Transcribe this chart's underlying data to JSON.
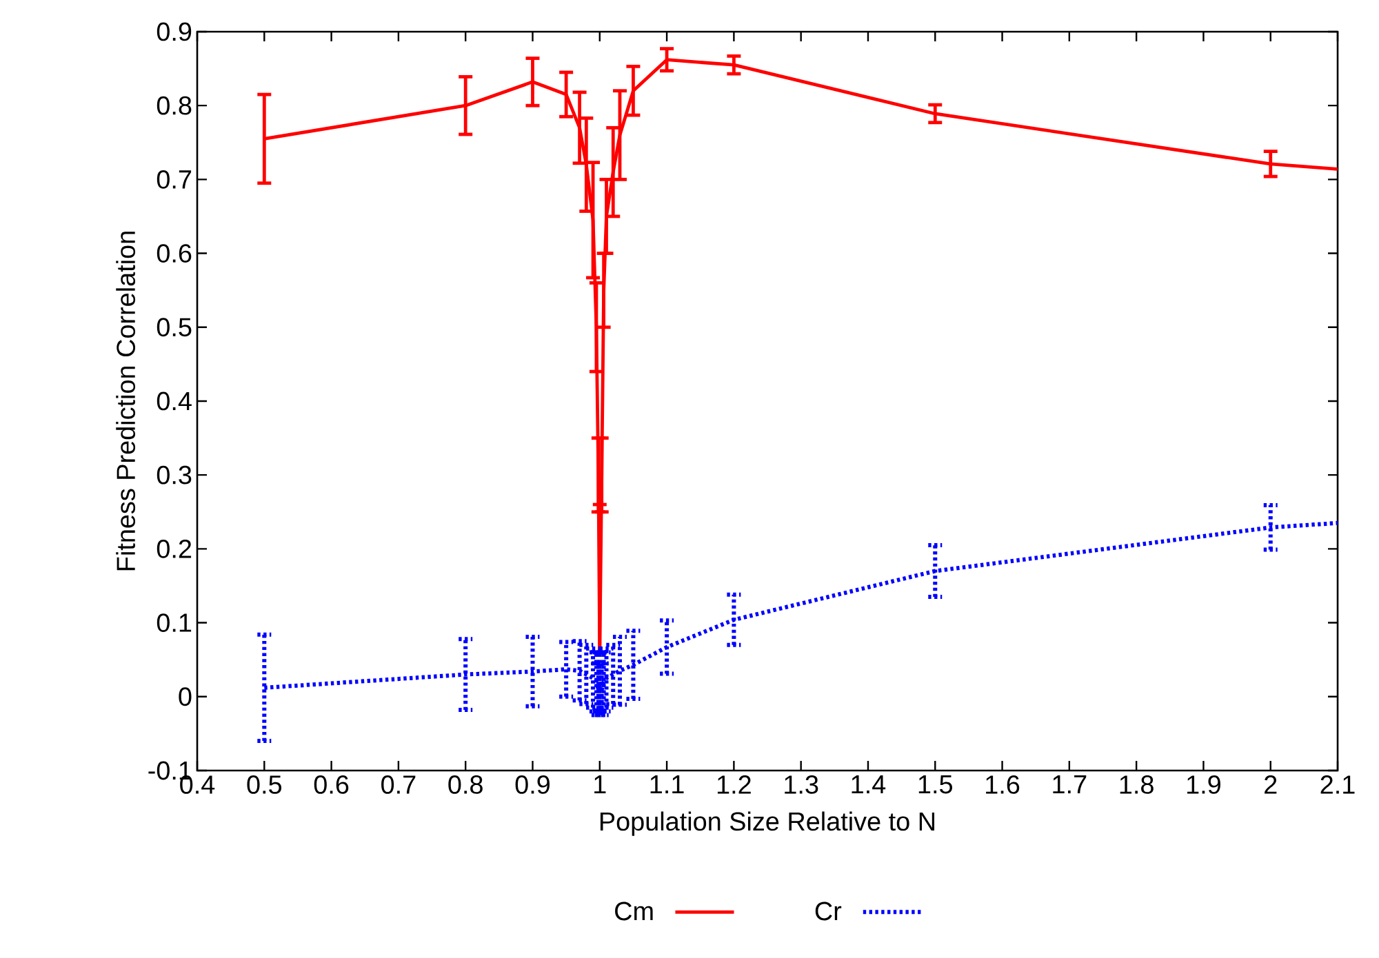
{
  "chart_data": {
    "type": "line",
    "xlabel": "Population Size Relative to N",
    "ylabel": "Fitness Prediction Correlation",
    "xlim": [
      0.4,
      2.1
    ],
    "xticks": [
      0.4,
      0.5,
      0.6,
      0.7,
      0.8,
      0.9,
      1,
      1.1,
      1.2,
      1.3,
      1.4,
      1.5,
      1.6,
      1.7,
      1.8,
      1.9,
      2,
      2.1
    ],
    "ylim": [
      -0.1,
      0.9
    ],
    "yticks": [
      -0.1,
      0,
      0.1,
      0.2,
      0.3,
      0.4,
      0.5,
      0.6,
      0.7,
      0.8,
      0.9
    ],
    "grid": false,
    "legend": "bottom",
    "marker": "none",
    "series": [
      {
        "name": "Cm",
        "color": "#ff0000",
        "line_style": "solid",
        "x": [
          0.5,
          0.8,
          0.9,
          0.95,
          0.97,
          0.98,
          0.99,
          0.995,
          0.998,
          1.0,
          1.003,
          1.006,
          1.01,
          1.02,
          1.03,
          1.05,
          1.1,
          1.2,
          1.5,
          2.0,
          2.1
        ],
        "values": [
          0.755,
          0.8,
          0.832,
          0.815,
          0.77,
          0.72,
          0.645,
          0.5,
          0.3,
          0.06,
          0.3,
          0.55,
          0.65,
          0.71,
          0.76,
          0.82,
          0.862,
          0.855,
          0.789,
          0.721,
          0.714
        ],
        "errors": [
          0.06,
          0.039,
          0.032,
          0.03,
          0.048,
          0.063,
          0.078,
          0.06,
          0.05,
          [
            0.06,
            0.26
          ],
          0.05,
          0.05,
          0.05,
          0.06,
          0.06,
          0.033,
          0.015,
          0.012,
          0.012,
          0.017,
          null
        ]
      },
      {
        "name": "Cr",
        "color": "#0000ff",
        "line_style": "dotted",
        "x": [
          0.5,
          0.8,
          0.9,
          0.95,
          0.97,
          0.98,
          0.99,
          0.995,
          0.998,
          1.0,
          1.003,
          1.006,
          1.01,
          1.02,
          1.03,
          1.05,
          1.1,
          1.2,
          1.5,
          2.0,
          2.1
        ],
        "values": [
          0.012,
          0.03,
          0.034,
          0.037,
          0.035,
          0.03,
          0.025,
          0.02,
          0.01,
          0.02,
          0.01,
          0.02,
          0.025,
          0.03,
          0.035,
          0.043,
          0.067,
          0.104,
          0.17,
          0.229,
          0.235
        ],
        "errors": [
          0.072,
          0.048,
          0.047,
          0.037,
          0.04,
          0.04,
          0.04,
          0.04,
          0.035,
          0.04,
          0.035,
          0.04,
          0.04,
          0.04,
          0.046,
          0.046,
          0.036,
          0.034,
          0.035,
          0.03,
          null
        ]
      }
    ]
  }
}
